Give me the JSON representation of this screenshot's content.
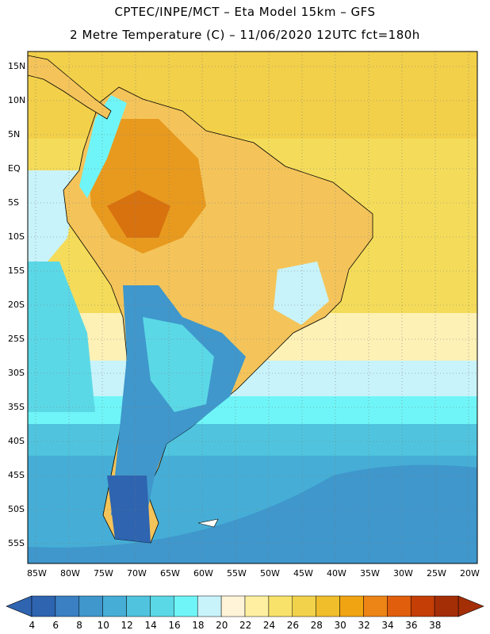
{
  "title": {
    "line1": "CPTEC/INPE/MCT –  Eta Model 15km – GFS",
    "line2": "2 Metre Temperature (C) – 11/06/2020 12UTC fct=180h"
  },
  "map": {
    "lat_labels": [
      "15N",
      "10N",
      "5N",
      "EQ",
      "5S",
      "10S",
      "15S",
      "20S",
      "25S",
      "30S",
      "35S",
      "40S",
      "45S",
      "50S",
      "55S"
    ],
    "lon_labels": [
      "85W",
      "80W",
      "75W",
      "70W",
      "65W",
      "60W",
      "55W",
      "50W",
      "45W",
      "40W",
      "35W",
      "30W",
      "25W",
      "20W"
    ]
  },
  "colorbar": {
    "labels": [
      "4",
      "6",
      "8",
      "10",
      "12",
      "14",
      "16",
      "18",
      "20",
      "22",
      "24",
      "26",
      "28",
      "30",
      "32",
      "34",
      "36",
      "38"
    ],
    "colors": [
      "#2e64b0",
      "#3a80c2",
      "#3f97cc",
      "#46aed6",
      "#50c4de",
      "#5bd8e6",
      "#6ff5f7",
      "#c8f3fa",
      "#fff4d8",
      "#fef0a0",
      "#f8e26a",
      "#f2d24a",
      "#efbe2a",
      "#f0a412",
      "#ec8416",
      "#e05e0c",
      "#c43e06",
      "#a42e06"
    ],
    "underflow_color": "#2e64b0",
    "overflow_color": "#a42e06"
  }
}
